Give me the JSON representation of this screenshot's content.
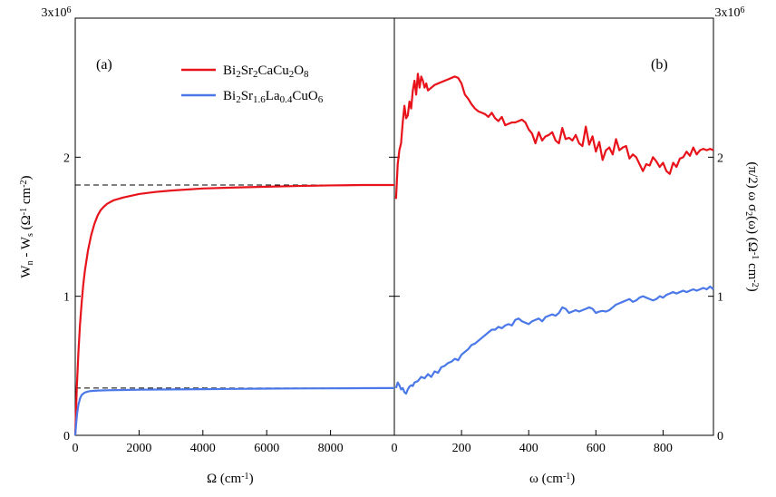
{
  "figure": {
    "left_ylabel": "W_n - W_s (Ω^-1 cm^-2)",
    "right_ylabel": "(π/2) ω σ_2(ω) (Ω^-1 cm^-2)",
    "y_top_label": "3x10^6",
    "colors": {
      "red": "#e8121b",
      "blue": "#4a78e8",
      "dashed": "#000000"
    }
  },
  "chart_data": [
    {
      "type": "line",
      "panel_label": "(a)",
      "xlabel": "Ω (cm^-1)",
      "ylabel": "W_n - W_s (Ω^-1 cm^-2)",
      "xlim": [
        0,
        10000
      ],
      "ylim": [
        0,
        3000000
      ],
      "x_ticks": [
        0,
        2000,
        4000,
        6000,
        8000
      ],
      "y_ticks": [
        0,
        1000000,
        2000000,
        3000000
      ],
      "y_tick_labels": [
        "0",
        "1",
        "2",
        "3x10^6"
      ],
      "grid": false,
      "legend_position": "top-center",
      "series": [
        {
          "name": "Bi2Sr2CaCu2O8",
          "color": "#e8121b",
          "x": [
            0,
            50,
            100,
            150,
            200,
            250,
            300,
            400,
            500,
            600,
            700,
            800,
            900,
            1000,
            1200,
            1500,
            2000,
            2500,
            3000,
            4000,
            5000,
            6000,
            7000,
            8000,
            9000,
            10000
          ],
          "y": [
            0,
            350000,
            600000,
            800000,
            950000,
            1080000,
            1180000,
            1330000,
            1440000,
            1520000,
            1580000,
            1620000,
            1645000,
            1665000,
            1690000,
            1710000,
            1735000,
            1750000,
            1760000,
            1775000,
            1782000,
            1788000,
            1793000,
            1797000,
            1800000,
            1800000
          ]
        },
        {
          "name": "Bi2Sr1.6La0.4CuO6",
          "color": "#4a78e8",
          "x": [
            0,
            30,
            60,
            100,
            150,
            200,
            300,
            400,
            500,
            700,
            1000,
            1500,
            2000,
            3000,
            4000,
            5000,
            6000,
            7000,
            8000,
            9000,
            10000
          ],
          "y": [
            0,
            90000,
            160000,
            220000,
            265000,
            290000,
            308000,
            315000,
            319000,
            322000,
            324000,
            326000,
            328000,
            330000,
            332000,
            334000,
            336000,
            337000,
            338000,
            339000,
            340000
          ]
        }
      ],
      "reference_lines": [
        {
          "y": 1800000,
          "style": "dashed"
        },
        {
          "y": 340000,
          "style": "dashed"
        }
      ]
    },
    {
      "type": "line",
      "panel_label": "(b)",
      "xlabel": "ω (cm^-1)",
      "ylabel": "(π/2) ω σ_2(ω) (Ω^-1 cm^-2)",
      "xlim": [
        0,
        950
      ],
      "ylim": [
        0,
        3000000
      ],
      "x_ticks": [
        0,
        200,
        400,
        600,
        800
      ],
      "y_ticks": [
        0,
        1000000,
        2000000,
        3000000
      ],
      "y_tick_labels": [
        "0",
        "1",
        "2",
        "3x10^6"
      ],
      "grid": false,
      "series": [
        {
          "name": "Bi2Sr2CaCu2O8",
          "color": "#e8121b",
          "x": [
            5,
            10,
            15,
            20,
            25,
            30,
            35,
            40,
            45,
            50,
            55,
            60,
            65,
            70,
            75,
            80,
            85,
            90,
            95,
            100,
            110,
            120,
            130,
            140,
            150,
            160,
            170,
            180,
            190,
            200,
            210,
            220,
            230,
            240,
            250,
            260,
            270,
            280,
            290,
            300,
            310,
            320,
            330,
            340,
            350,
            360,
            370,
            380,
            390,
            400,
            410,
            420,
            430,
            440,
            450,
            460,
            470,
            480,
            490,
            500,
            510,
            520,
            530,
            540,
            550,
            560,
            570,
            580,
            590,
            600,
            610,
            620,
            630,
            640,
            650,
            660,
            670,
            680,
            690,
            700,
            710,
            720,
            730,
            740,
            750,
            760,
            770,
            780,
            790,
            800,
            810,
            820,
            830,
            840,
            850,
            860,
            870,
            880,
            890,
            900,
            910,
            920,
            930,
            940,
            950
          ],
          "y": [
            1700000,
            1950000,
            2050000,
            2100000,
            2250000,
            2370000,
            2280000,
            2300000,
            2400000,
            2350000,
            2480000,
            2550000,
            2450000,
            2600000,
            2500000,
            2580000,
            2550000,
            2500000,
            2530000,
            2480000,
            2500000,
            2520000,
            2530000,
            2540000,
            2550000,
            2560000,
            2570000,
            2580000,
            2570000,
            2530000,
            2450000,
            2420000,
            2380000,
            2350000,
            2330000,
            2320000,
            2310000,
            2290000,
            2320000,
            2280000,
            2260000,
            2290000,
            2230000,
            2240000,
            2250000,
            2250000,
            2260000,
            2270000,
            2250000,
            2200000,
            2170000,
            2100000,
            2180000,
            2120000,
            2150000,
            2160000,
            2180000,
            2120000,
            2100000,
            2210000,
            2130000,
            2140000,
            2120000,
            2160000,
            2100000,
            2080000,
            2220000,
            2090000,
            2150000,
            2040000,
            2110000,
            1980000,
            2050000,
            2070000,
            2020000,
            2130000,
            2050000,
            2070000,
            2080000,
            1990000,
            2020000,
            2000000,
            1950000,
            1900000,
            1950000,
            1940000,
            2000000,
            1970000,
            1930000,
            1960000,
            1900000,
            1880000,
            1960000,
            1930000,
            1990000,
            2000000,
            2040000,
            2010000,
            2070000,
            2020000,
            2050000,
            2060000,
            2050000,
            2060000,
            2050000
          ]
        },
        {
          "name": "Bi2Sr1.6La0.4CuO6",
          "color": "#4a78e8",
          "x": [
            5,
            10,
            15,
            20,
            25,
            30,
            35,
            40,
            45,
            50,
            55,
            60,
            70,
            80,
            90,
            100,
            110,
            120,
            130,
            140,
            150,
            160,
            170,
            180,
            190,
            200,
            210,
            220,
            230,
            240,
            250,
            260,
            270,
            280,
            290,
            300,
            310,
            320,
            330,
            340,
            350,
            360,
            370,
            380,
            390,
            400,
            410,
            420,
            430,
            440,
            450,
            460,
            470,
            480,
            490,
            500,
            510,
            520,
            530,
            540,
            550,
            560,
            570,
            580,
            590,
            600,
            610,
            620,
            630,
            640,
            650,
            660,
            670,
            680,
            690,
            700,
            710,
            720,
            730,
            740,
            750,
            760,
            770,
            780,
            790,
            800,
            810,
            820,
            830,
            840,
            850,
            860,
            870,
            880,
            890,
            900,
            910,
            920,
            930,
            940,
            950
          ],
          "y": [
            340000,
            380000,
            360000,
            330000,
            340000,
            310000,
            300000,
            330000,
            350000,
            360000,
            355000,
            380000,
            390000,
            420000,
            410000,
            440000,
            420000,
            460000,
            450000,
            490000,
            500000,
            520000,
            530000,
            550000,
            540000,
            580000,
            600000,
            620000,
            650000,
            660000,
            680000,
            700000,
            720000,
            740000,
            760000,
            760000,
            780000,
            770000,
            790000,
            800000,
            790000,
            830000,
            840000,
            820000,
            810000,
            800000,
            820000,
            830000,
            840000,
            820000,
            850000,
            860000,
            870000,
            860000,
            880000,
            920000,
            910000,
            880000,
            890000,
            900000,
            890000,
            900000,
            910000,
            920000,
            910000,
            880000,
            890000,
            895000,
            890000,
            900000,
            920000,
            940000,
            950000,
            960000,
            970000,
            980000,
            960000,
            970000,
            990000,
            1000000,
            990000,
            980000,
            970000,
            980000,
            1000000,
            990000,
            1010000,
            1020000,
            1030000,
            1020000,
            1030000,
            1040000,
            1030000,
            1040000,
            1050000,
            1040000,
            1050000,
            1060000,
            1050000,
            1070000,
            1050000
          ]
        }
      ]
    }
  ]
}
